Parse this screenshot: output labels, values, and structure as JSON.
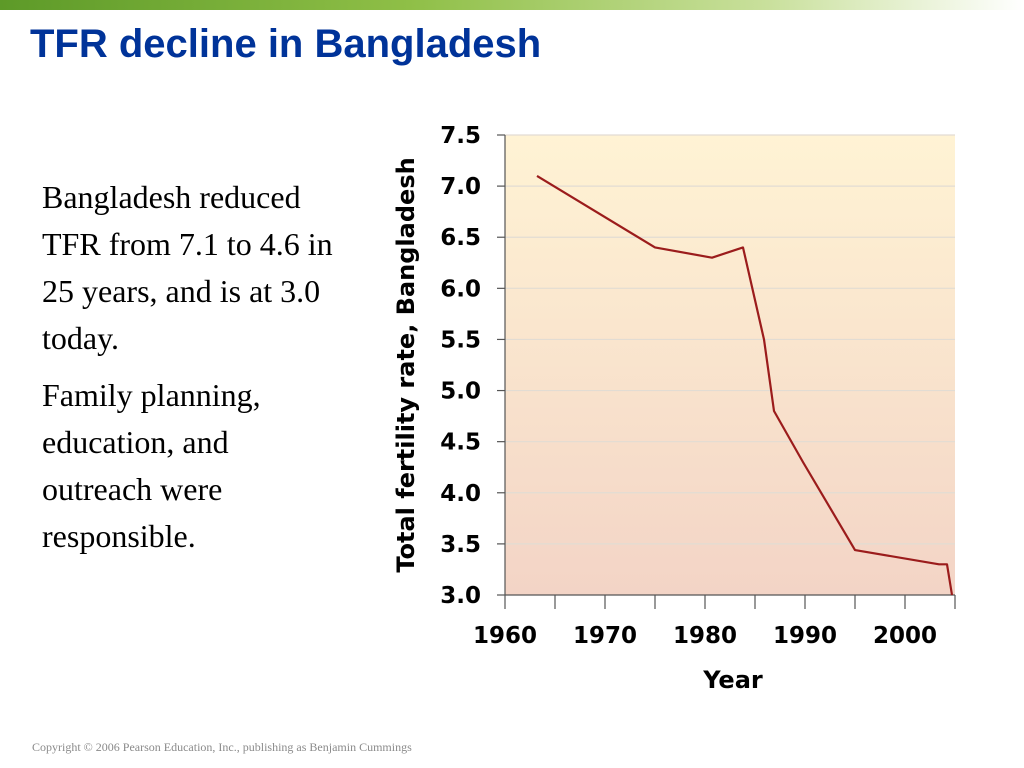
{
  "slide": {
    "title": "TFR decline in Bangladesh",
    "paragraphs": [
      "Bangladesh reduced TFR from 7.1 to 4.6 in 25 years, and is at 3.0 today.",
      "Family planning, education, and outreach were responsible."
    ],
    "copyright": "Copyright © 2006 Pearson Education, Inc., publishing as Benjamin Cummings"
  },
  "colors": {
    "title": "#003399",
    "line": "#9b1c1c",
    "plot_bg_top": "#fff3d4",
    "plot_bg_bottom": "#f3d4c6",
    "accent_bar": "#5d9a28"
  },
  "chart_data": {
    "type": "line",
    "title": "",
    "xlabel": "Year",
    "ylabel": "Total fertility rate, Bangladesh",
    "xlim": [
      1960,
      2005
    ],
    "ylim": [
      3.0,
      7.5
    ],
    "x_ticks": [
      1960,
      1965,
      1970,
      1975,
      1980,
      1985,
      1990,
      1995,
      2000,
      2005
    ],
    "x_tick_labels": [
      "1960",
      "1970",
      "1980",
      "1990",
      "2000"
    ],
    "x_tick_label_values": [
      1960,
      1970,
      1980,
      1990,
      2000
    ],
    "y_ticks": [
      3.0,
      3.5,
      4.0,
      4.5,
      5.0,
      5.5,
      6.0,
      6.5,
      7.0,
      7.5
    ],
    "y_tick_labels": [
      "3.0",
      "3.5",
      "4.0",
      "4.5",
      "5.0",
      "5.5",
      "6.0",
      "6.5",
      "7.0",
      "7.5"
    ],
    "grid": "horizontal",
    "series": [
      {
        "x": [
          1963.2,
          1975,
          1980.7,
          1983.8,
          1985.9,
          1986.9,
          1989.8,
          1995,
          2003.4,
          2004.2,
          2004.7
        ],
        "values": [
          7.1,
          6.4,
          6.3,
          6.4,
          5.5,
          4.8,
          4.3,
          3.44,
          3.3,
          3.3,
          3.0
        ]
      }
    ]
  }
}
